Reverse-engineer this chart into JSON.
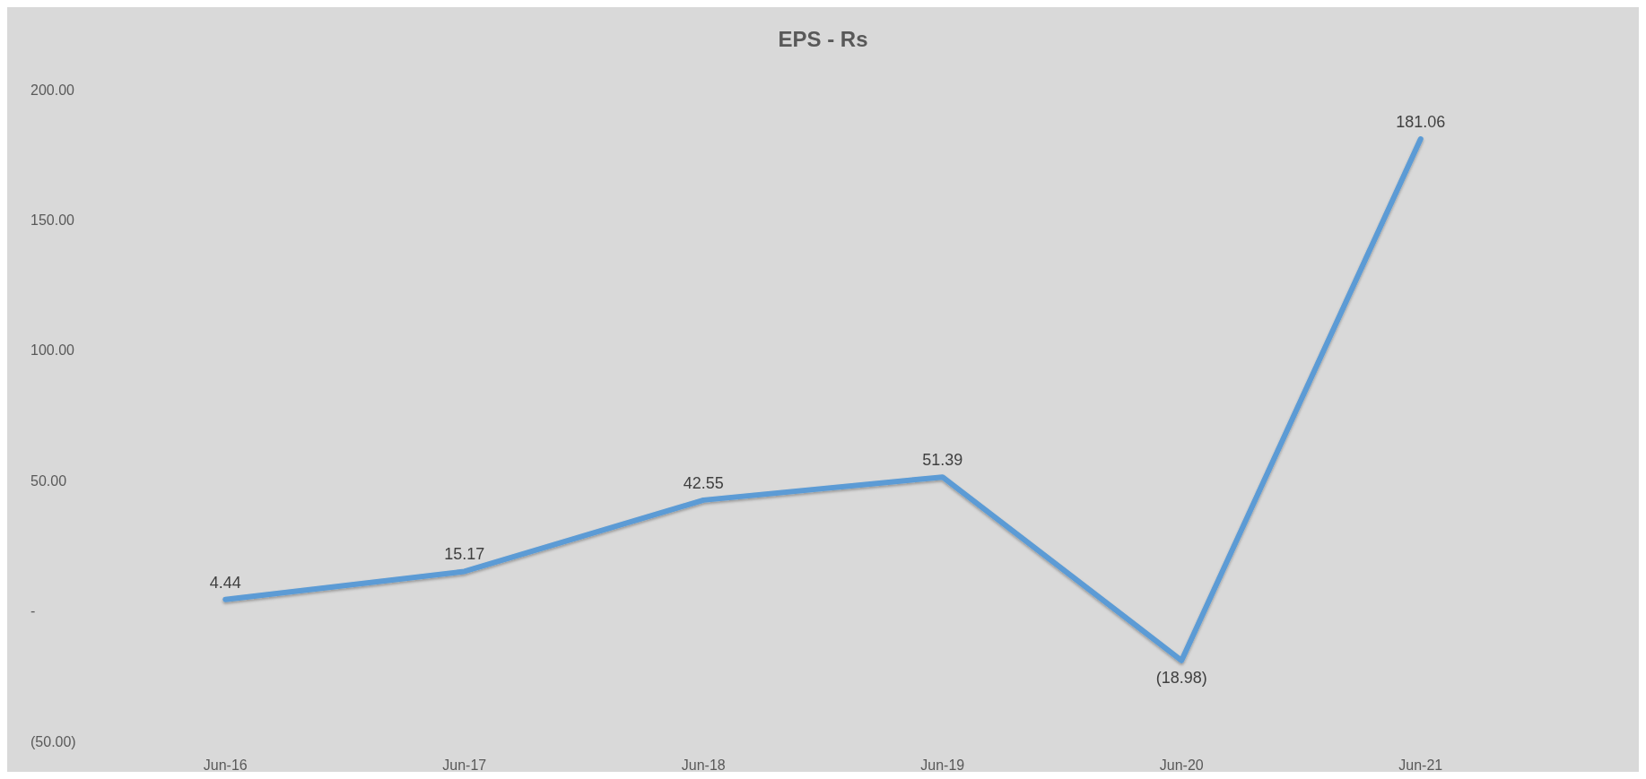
{
  "chart_data": {
    "type": "line",
    "title": "EPS - Rs",
    "categories": [
      "Jun-16",
      "Jun-17",
      "Jun-18",
      "Jun-19",
      "Jun-20",
      "Jun-21"
    ],
    "series": [
      {
        "color": "#5b9bd5",
        "values": [
          4.44,
          15.17,
          42.55,
          51.39,
          -18.98,
          181.06
        ],
        "value_labels": [
          "4.44",
          "15.17",
          "42.55",
          "51.39",
          "(18.98)",
          "181.06"
        ]
      }
    ],
    "ylim": [
      -50,
      200
    ],
    "yticks": [
      {
        "value": -50,
        "label": "(50.00)"
      },
      {
        "value": 0,
        "label": "-"
      },
      {
        "value": 50,
        "label": "50.00"
      },
      {
        "value": 100,
        "label": "100.00"
      },
      {
        "value": 150,
        "label": "150.00"
      },
      {
        "value": 200,
        "label": "200.00"
      }
    ],
    "grid": false,
    "marker": "none",
    "line_style": "solid"
  }
}
